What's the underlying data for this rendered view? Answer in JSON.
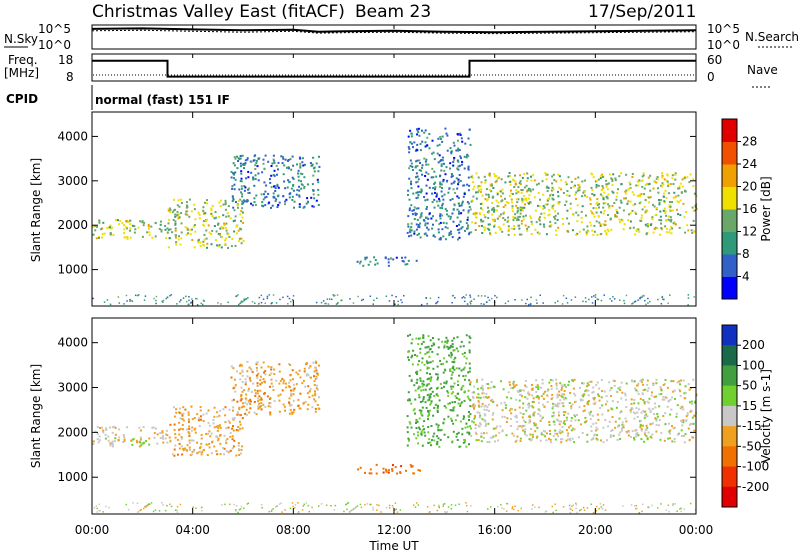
{
  "header": {
    "station": "Christmas Valley East (fitACF)",
    "beam": "Beam 23",
    "date": "17/Sep/2011"
  },
  "panels": {
    "nsky_label": "N.Sky",
    "nsearch_label": "N.Search",
    "noise_ticks_left": [
      "10^5",
      "10^0"
    ],
    "noise_ticks_right": [
      "10^5",
      "10^0"
    ],
    "freq_label_1": "Freq.",
    "freq_label_2": "[MHz]",
    "freq_ticks": [
      "18",
      "8"
    ],
    "nave_label": "Nave",
    "nave_ticks": [
      "60",
      "0"
    ],
    "cpid_label": "CPID",
    "cpid_text": "normal (fast) 151 IF"
  },
  "chart_data": [
    {
      "type": "line",
      "name": "noise",
      "x": [
        0,
        2,
        4,
        6,
        8,
        9,
        10,
        12,
        14,
        16,
        18,
        20,
        22,
        24
      ],
      "y_sky": [
        4.2,
        4.3,
        4.1,
        3.9,
        4.0,
        3.6,
        3.7,
        3.8,
        3.6,
        3.5,
        3.6,
        3.7,
        3.8,
        3.9
      ],
      "y_search": [
        3.8,
        3.9,
        3.7,
        3.5,
        3.7,
        3.3,
        3.4,
        3.5,
        3.3,
        3.2,
        3.3,
        3.4,
        3.5,
        3.6
      ],
      "ylim": [
        0,
        5
      ]
    },
    {
      "type": "line",
      "name": "frequency",
      "x": [
        0,
        3,
        3,
        15,
        15,
        24
      ],
      "freq": [
        15.5,
        15.5,
        9.6,
        9.6,
        15.5,
        15.5
      ],
      "ylim_freq": [
        8,
        18
      ],
      "ylim_nave": [
        0,
        60
      ]
    },
    {
      "type": "heatmap",
      "title": "Power",
      "xlabel": "Time UT",
      "ylabel": "Slant Range [km]",
      "x_ticks": [
        "00:00",
        "04:00",
        "08:00",
        "12:00",
        "16:00",
        "20:00",
        "00:00"
      ],
      "y_ticks": [
        "1000",
        "2000",
        "3000",
        "4000"
      ],
      "xlim": [
        0,
        24
      ],
      "ylim": [
        180,
        4550
      ],
      "colorbar_label": "Power [dB]",
      "colorbar_ticks": [
        "4",
        "8",
        "12",
        "16",
        "20",
        "24",
        "28"
      ],
      "colorbar_colors": [
        "#0000ff",
        "#3060c8",
        "#2e9a7a",
        "#6aa86a",
        "#f0e000",
        "#f0a000",
        "#f05000",
        "#e00000"
      ],
      "bands": [
        {
          "x": [
            0,
            3
          ],
          "range": [
            1700,
            2150
          ],
          "value": 16
        },
        {
          "x": [
            3,
            6
          ],
          "range": [
            1500,
            2600
          ],
          "value": 16
        },
        {
          "x": [
            5.5,
            9
          ],
          "range": [
            2400,
            3600
          ],
          "value": 8
        },
        {
          "x": [
            10.5,
            13
          ],
          "range": [
            1100,
            1300
          ],
          "value": 8
        },
        {
          "x": [
            12.5,
            15
          ],
          "range": [
            1700,
            4200
          ],
          "value": 8
        },
        {
          "x": [
            15,
            24
          ],
          "range": [
            1800,
            3200
          ],
          "value": 16
        }
      ]
    },
    {
      "type": "heatmap",
      "title": "Velocity",
      "xlabel": "Time UT",
      "ylabel": "Slant Range [km]",
      "x_ticks": [
        "00:00",
        "04:00",
        "08:00",
        "12:00",
        "16:00",
        "20:00",
        "00:00"
      ],
      "y_ticks": [
        "1000",
        "2000",
        "3000",
        "4000"
      ],
      "xlim": [
        0,
        24
      ],
      "ylim": [
        180,
        4550
      ],
      "colorbar_label": "Velocity [m s-1]",
      "colorbar_ticks": [
        "200",
        "100",
        "50",
        "15",
        "-15",
        "-50",
        "-100",
        "-200"
      ],
      "colorbar_colors": [
        "#1030c0",
        "#1a6a4a",
        "#40a040",
        "#70d030",
        "#c8c8c8",
        "#f0a020",
        "#f07000",
        "#f03000",
        "#e00000"
      ],
      "bands": [
        {
          "x": [
            0,
            3
          ],
          "range": [
            1700,
            2150
          ],
          "value": 0
        },
        {
          "x": [
            3,
            6
          ],
          "range": [
            1500,
            2600
          ],
          "value": -30
        },
        {
          "x": [
            5.5,
            9
          ],
          "range": [
            2400,
            3600
          ],
          "value": -30
        },
        {
          "x": [
            10.5,
            13
          ],
          "range": [
            1100,
            1300
          ],
          "value": -80
        },
        {
          "x": [
            12.5,
            15
          ],
          "range": [
            1700,
            4200
          ],
          "value": 60
        },
        {
          "x": [
            15,
            24
          ],
          "range": [
            1800,
            3200
          ],
          "value": 0
        }
      ]
    }
  ]
}
